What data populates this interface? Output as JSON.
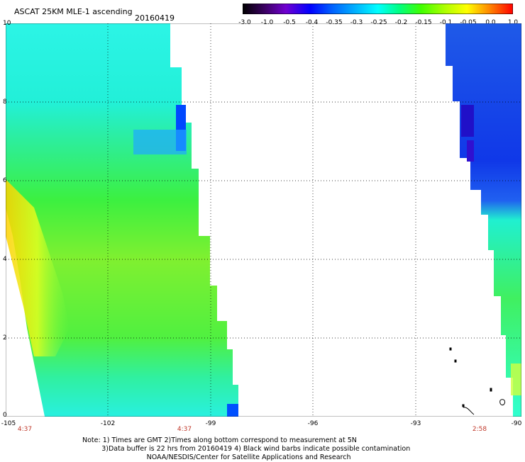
{
  "header": {
    "title": "ASCAT 25KM MLE-1 ascending",
    "date": "20160419"
  },
  "colorbar": {
    "labels": [
      "-3.0",
      "-1.0",
      "-0.5",
      "-0.4",
      "-0.35",
      "-0.3",
      "-0.25",
      "-0.2",
      "-0.15",
      "-0.1",
      "-0.05",
      "0.0",
      "1.0"
    ],
    "colors": [
      "#000000",
      "#7a00c8",
      "#0028ff",
      "#0080ff",
      "#00c8ff",
      "#00ffe6",
      "#00ff96",
      "#32ff00",
      "#a0ff00",
      "#ffff00",
      "#ffa000",
      "#ff3c00",
      "#ff0000"
    ]
  },
  "axes": {
    "y_labels": [
      "10",
      "8",
      "6",
      "4",
      "2",
      "0"
    ],
    "x_labels": [
      "-105",
      "-102",
      "-99",
      "-96",
      "-93",
      "-90"
    ],
    "times": [
      "4:37",
      "4:37",
      "2:58"
    ]
  },
  "map": {
    "lon_range": [
      -105,
      -90
    ],
    "lat_range": [
      0,
      10
    ],
    "grid": "dotted"
  },
  "notes": {
    "line1": "Note: 1) Times are GMT 2)Times along bottom correspond to measurement at 5N",
    "line2": "3)Data buffer is 22 hrs from 20160419 4) Black wind barbs indicate possible contamination",
    "line3": "NOAA/NESDIS/Center for Satellite Applications and Research"
  }
}
